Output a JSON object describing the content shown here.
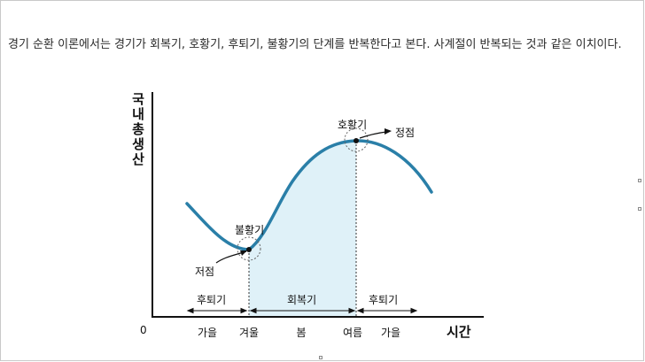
{
  "paragraph": "경기 순환 이론에서는 경기가 회복기, 호황기, 후퇴기, 불황기의 단계를 반복한다고 본다. 사계절이 반복되는 것과 같은 이치이다.",
  "chart_data": {
    "type": "line",
    "ylabel": "국내총생산",
    "xlabel": "시간",
    "origin_label": "0",
    "x_ticks": [
      "가을",
      "겨울",
      "봄",
      "여름",
      "가을"
    ],
    "phases": [
      "후퇴기",
      "회복기",
      "후퇴기"
    ],
    "annotations": {
      "trough_phase": "불황기",
      "trough_point": "저점",
      "peak_phase": "호황기",
      "peak_point": "정점"
    },
    "shaded_region": "회복기",
    "colors": {
      "curve": "#2a7fa8",
      "fill": "#dff1f8"
    }
  }
}
